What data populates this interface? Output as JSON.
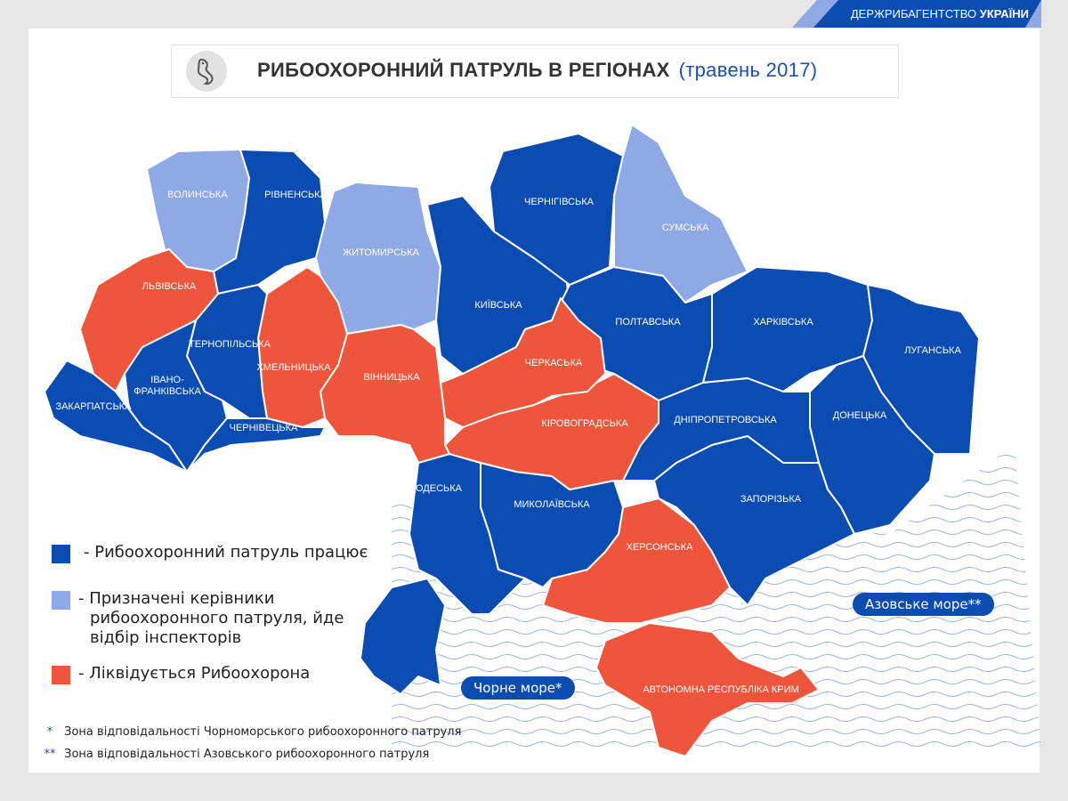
{
  "brand": {
    "prefix": "ДЕРЖРИБАГЕНТСТВО",
    "bold": "УКРАЇНИ"
  },
  "header": {
    "icon": "fish-icon",
    "title": "РИБООХОРОННИЙ ПАТРУЛЬ В РЕГІОНАХ",
    "subtitle": "(травень 2017)"
  },
  "colors": {
    "working": "#0b4cb2",
    "appointed": "#8fa8e6",
    "liquidated": "#ee553b",
    "brand": "#0b4cb2"
  },
  "legend": [
    {
      "status": "working",
      "text": "- Рибоохоронний патруль працює"
    },
    {
      "status": "appointed",
      "text": "- Призначені керівники",
      "text2": "рибоохоронного патруля, йде",
      "text3": "відбір інспекторів"
    },
    {
      "status": "liquidated",
      "text": "- Ліквідується Рибоохорона"
    }
  ],
  "notes": [
    {
      "mark": "*",
      "text": "Зона відповідальності Чорноморського рибоохоронного патруля"
    },
    {
      "mark": "**",
      "text": "Зона відповідальності Азовського рибоохоронного патруля"
    }
  ],
  "seas": {
    "black": "Чорне море*",
    "azov": "Азовське море**"
  },
  "regions": [
    {
      "id": "volyn",
      "name": "ВОЛИНСЬКА",
      "status": "appointed"
    },
    {
      "id": "rivne",
      "name": "РІВНЕНСЬКА",
      "status": "working"
    },
    {
      "id": "zhytomyr",
      "name": "ЖИТОМИРСЬКА",
      "status": "appointed"
    },
    {
      "id": "kyiv",
      "name": "КИЇВСЬКА",
      "status": "working"
    },
    {
      "id": "chernihiv",
      "name": "ЧЕРНІГІВСЬКА",
      "status": "working"
    },
    {
      "id": "sumy",
      "name": "СУМСЬКА",
      "status": "appointed"
    },
    {
      "id": "poltava",
      "name": "ПОЛТАВСЬКА",
      "status": "working"
    },
    {
      "id": "kharkiv",
      "name": "ХАРКІВСЬКА",
      "status": "working"
    },
    {
      "id": "luhansk",
      "name": "ЛУГАНСЬКА",
      "status": "working"
    },
    {
      "id": "donetsk",
      "name": "ДОНЕЦЬКА",
      "status": "working"
    },
    {
      "id": "dnipro",
      "name": "ДНІПРОПЕТРОВСЬКА",
      "status": "working"
    },
    {
      "id": "zaporizhzhia",
      "name": "ЗАПОРІЗЬКА",
      "status": "working"
    },
    {
      "id": "kherson",
      "name": "ХЕРСОНСЬКА",
      "status": "liquidated"
    },
    {
      "id": "crimea",
      "name": "АВТОНОМНА РЕСПУБЛІКА КРИМ",
      "status": "liquidated"
    },
    {
      "id": "mykolaiv",
      "name": "МИКОЛАЇВСЬКА",
      "status": "working"
    },
    {
      "id": "odesa",
      "name": "ОДЕСЬКА",
      "status": "working"
    },
    {
      "id": "kirovohrad",
      "name": "КІРОВОГРАДСЬКА",
      "status": "liquidated"
    },
    {
      "id": "cherkasy",
      "name": "ЧЕРКАСЬКА",
      "status": "liquidated"
    },
    {
      "id": "vinnytsia",
      "name": "ВІННИЦЬКА",
      "status": "liquidated"
    },
    {
      "id": "khmelnytskyi",
      "name": "ХМЕЛЬНИЦЬКА",
      "status": "liquidated"
    },
    {
      "id": "ternopil",
      "name": "ТЕРНОПІЛЬСЬКА",
      "status": "working"
    },
    {
      "id": "lviv",
      "name": "ЛЬВІВСЬКА",
      "status": "liquidated"
    },
    {
      "id": "ivano-frankivsk",
      "name": "ІВАНО-",
      "name2": "ФРАНКІВСЬКА",
      "status": "working"
    },
    {
      "id": "zakarpattia",
      "name": "ЗАКАРПАТСЬКА",
      "status": "working"
    },
    {
      "id": "chernivtsi",
      "name": "ЧЕРНІВЕЦЬКА",
      "status": "working"
    }
  ]
}
